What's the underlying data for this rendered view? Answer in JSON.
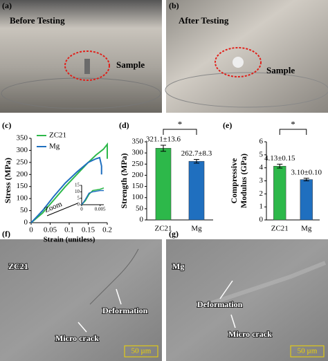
{
  "panels": {
    "a": {
      "label": "(a)",
      "title": "Before Testing",
      "annotation": "Sample"
    },
    "b": {
      "label": "(b)",
      "title": "After Testing",
      "annotation": "Sample"
    },
    "f": {
      "label": "(f)",
      "title": "ZC21",
      "annotations": [
        "Deformation",
        "Micro crack"
      ],
      "scale_bar": "50 µm"
    },
    "g": {
      "label": "(g)",
      "title": "Mg",
      "annotations": [
        "Deformation",
        "Micro crack"
      ],
      "scale_bar": "50 µm"
    }
  },
  "chart_data": [
    {
      "type": "line",
      "panel_label": "(c)",
      "xlabel": "Strain (unitless)",
      "ylabel": "Stress (MPa)",
      "xlim": [
        0,
        0.2
      ],
      "xticks": [
        0,
        0.05,
        0.1,
        0.15,
        0.2
      ],
      "ylim": [
        0,
        350
      ],
      "yticks": [
        0,
        50,
        100,
        150,
        200,
        250,
        300,
        350
      ],
      "series": [
        {
          "name": "ZC21",
          "color": "#2db84a",
          "x": [
            0,
            0.03,
            0.06,
            0.09,
            0.12,
            0.15,
            0.17,
            0.19,
            0.2,
            0.2
          ],
          "values": [
            0,
            40,
            95,
            150,
            200,
            250,
            280,
            305,
            325,
            265
          ]
        },
        {
          "name": "Mg",
          "color": "#1f6fbf",
          "x": [
            0,
            0.03,
            0.06,
            0.09,
            0.12,
            0.15,
            0.17,
            0.18,
            0.185,
            0.185
          ],
          "values": [
            0,
            50,
            110,
            165,
            210,
            250,
            265,
            270,
            235,
            200
          ]
        }
      ],
      "annotation": "Zoom",
      "inset": {
        "xlim": [
          0,
          0.006
        ],
        "xticks": [
          0,
          0.005
        ],
        "ylim": [
          0,
          15
        ],
        "yticks": [
          0,
          5,
          10,
          15
        ],
        "series": [
          {
            "color": "#2db84a",
            "x": [
              0,
              0.001,
              0.002,
              0.003,
              0.005,
              0.006
            ],
            "values": [
              0,
              3,
              8,
              11,
              12,
              13
            ]
          },
          {
            "color": "#1f6fbf",
            "x": [
              0,
              0.001,
              0.002,
              0.003,
              0.005,
              0.006
            ],
            "values": [
              0,
              4,
              9,
              10,
              11,
              11
            ]
          }
        ]
      }
    },
    {
      "type": "bar",
      "panel_label": "(d)",
      "ylabel": [
        "Strength (MPa)"
      ],
      "categories": [
        "ZC21",
        "Mg"
      ],
      "values": [
        321.1,
        262.7
      ],
      "errors": [
        13.6,
        8.3
      ],
      "value_labels": [
        "321.1±13.6",
        "262.7±8.3"
      ],
      "colors": [
        "#2db84a",
        "#1f6fbf"
      ],
      "ylim": [
        0,
        350
      ],
      "yticks": [
        0,
        50,
        100,
        150,
        200,
        250,
        300,
        350
      ],
      "significance": "*"
    },
    {
      "type": "bar",
      "panel_label": "(e)",
      "ylabel": [
        "Compressive",
        "Modulus (GPa)"
      ],
      "categories": [
        "ZC21",
        "Mg"
      ],
      "values": [
        4.13,
        3.1
      ],
      "errors": [
        0.15,
        0.1
      ],
      "value_labels": [
        "4.13±0.15",
        "3.10±0.10"
      ],
      "colors": [
        "#2db84a",
        "#1f6fbf"
      ],
      "ylim": [
        0,
        6
      ],
      "yticks": [
        0,
        1,
        2,
        3,
        4,
        5,
        6
      ],
      "significance": "*"
    }
  ]
}
